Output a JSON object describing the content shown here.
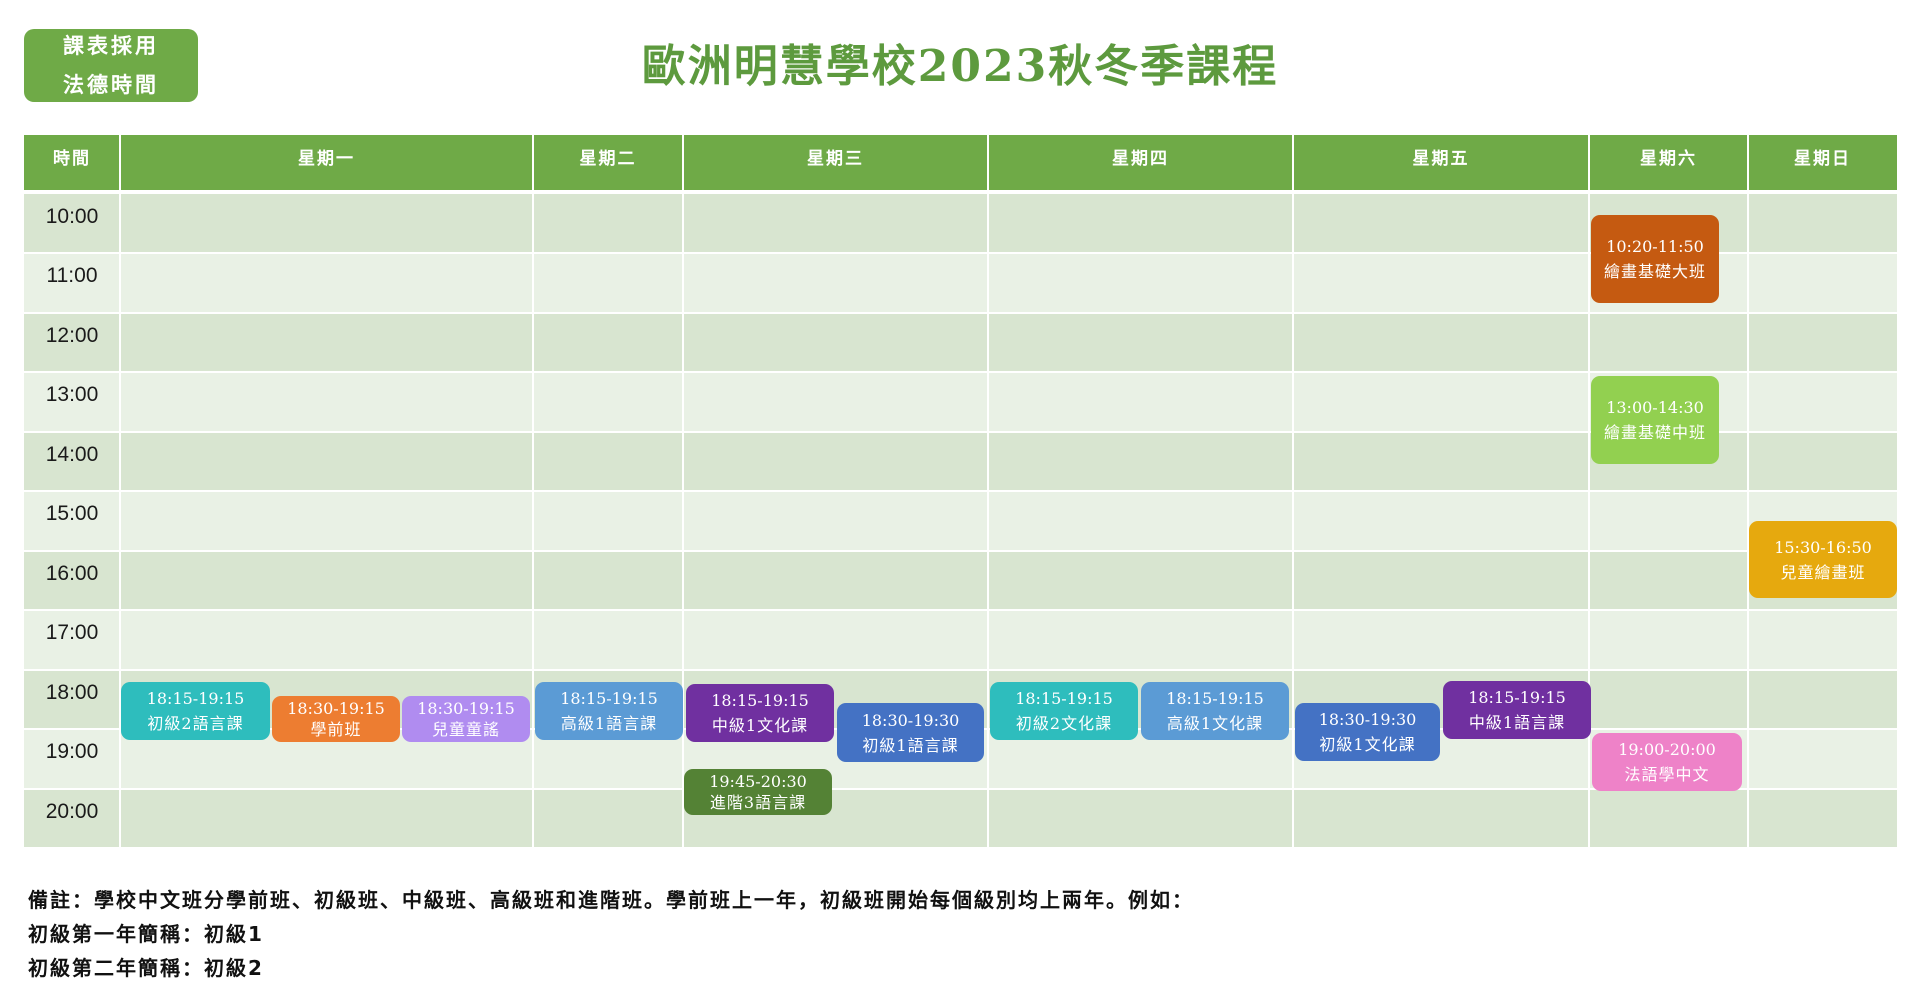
{
  "badge": {
    "line1": "課表採用",
    "line2": "法德時間"
  },
  "title": "歐洲明慧學校2023秋冬季課程",
  "headers": [
    "時間",
    "星期一",
    "星期二",
    "星期三",
    "星期四",
    "星期五",
    "星期六",
    "星期日"
  ],
  "times": [
    "10:00",
    "11:00",
    "12:00",
    "13:00",
    "14:00",
    "15:00",
    "16:00",
    "17:00",
    "18:00",
    "19:00",
    "20:00"
  ],
  "events": [
    {
      "time": "10:20-11:50",
      "name": "繪畫基礎大班",
      "color": "#c55a11"
    },
    {
      "time": "13:00-14:30",
      "name": "繪畫基礎中班",
      "color": "#92d050"
    },
    {
      "time": "15:30-16:50",
      "name": "兒童繪畫班",
      "color": "#e6a90e"
    },
    {
      "time": "18:15-19:15",
      "name": "初級2語言課",
      "color": "#2ebdbd"
    },
    {
      "time": "18:30-19:15",
      "name": "學前班",
      "color": "#ed7d31"
    },
    {
      "time": "18:30-19:15",
      "name": "兒童童謠",
      "color": "#b08cf0"
    },
    {
      "time": "18:15-19:15",
      "name": "高級1語言課",
      "color": "#5b9bd5"
    },
    {
      "time": "18:15-19:15",
      "name": "中級1文化課",
      "color": "#7030a0"
    },
    {
      "time": "18:30-19:30",
      "name": "初級1語言課",
      "color": "#4472c4"
    },
    {
      "time": "19:45-20:30",
      "name": "進階3語言課",
      "color": "#548235"
    },
    {
      "time": "18:15-19:15",
      "name": "初級2文化課",
      "color": "#2ebdbd"
    },
    {
      "time": "18:15-19:15",
      "name": "高級1文化課",
      "color": "#5b9bd5"
    },
    {
      "time": "18:30-19:30",
      "name": "初級1文化課",
      "color": "#4472c4"
    },
    {
      "time": "18:15-19:15",
      "name": "中級1語言課",
      "color": "#7030a0"
    },
    {
      "time": "19:00-20:00",
      "name": "法語學中文",
      "color": "#ee82c8"
    }
  ],
  "notes": [
    "備註：學校中文班分學前班、初級班、中級班、高級班和進階班。學前班上一年，初級班開始每個級別均上兩年。例如：",
    "初級第一年簡稱：初級1",
    "初級第二年簡稱：初級2"
  ]
}
